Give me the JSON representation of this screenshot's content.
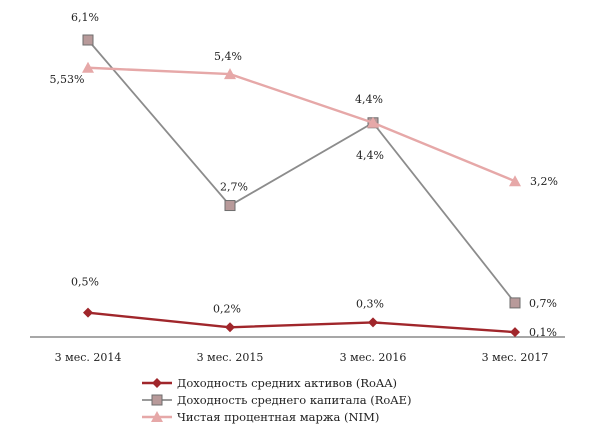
{
  "chart_data": {
    "type": "line",
    "categories": [
      "3 мес. 2014",
      "3 мес. 2015",
      "3 мес. 2016",
      "3 мес. 2017"
    ],
    "ylim": [
      0,
      6.4
    ],
    "grid": false,
    "legend_position": "bottom",
    "series": [
      {
        "name": "Доходность средних активов (RoAA)",
        "marker": "diamond",
        "color": "#a0262b",
        "values": [
          0.5,
          0.2,
          0.3,
          0.1
        ],
        "labels": [
          "0,5%",
          "0,2%",
          "0,3%",
          "0,1%"
        ]
      },
      {
        "name": "Доходность среднего капитала (RoAE)",
        "marker": "square",
        "color": "#8c8c8c",
        "fill": "#b89a9a",
        "values": [
          6.1,
          2.7,
          4.4,
          0.7
        ],
        "labels": [
          "6,1%",
          "2,7%",
          "4,4%",
          "0,7%"
        ]
      },
      {
        "name": "Чистая процентная маржа (NIM)",
        "marker": "triangle",
        "color": "#e6a8a8",
        "values": [
          5.53,
          5.4,
          4.4,
          3.2
        ],
        "labels": [
          "5,53%",
          "5,4%",
          "4,4%",
          "3,2%"
        ]
      }
    ]
  }
}
